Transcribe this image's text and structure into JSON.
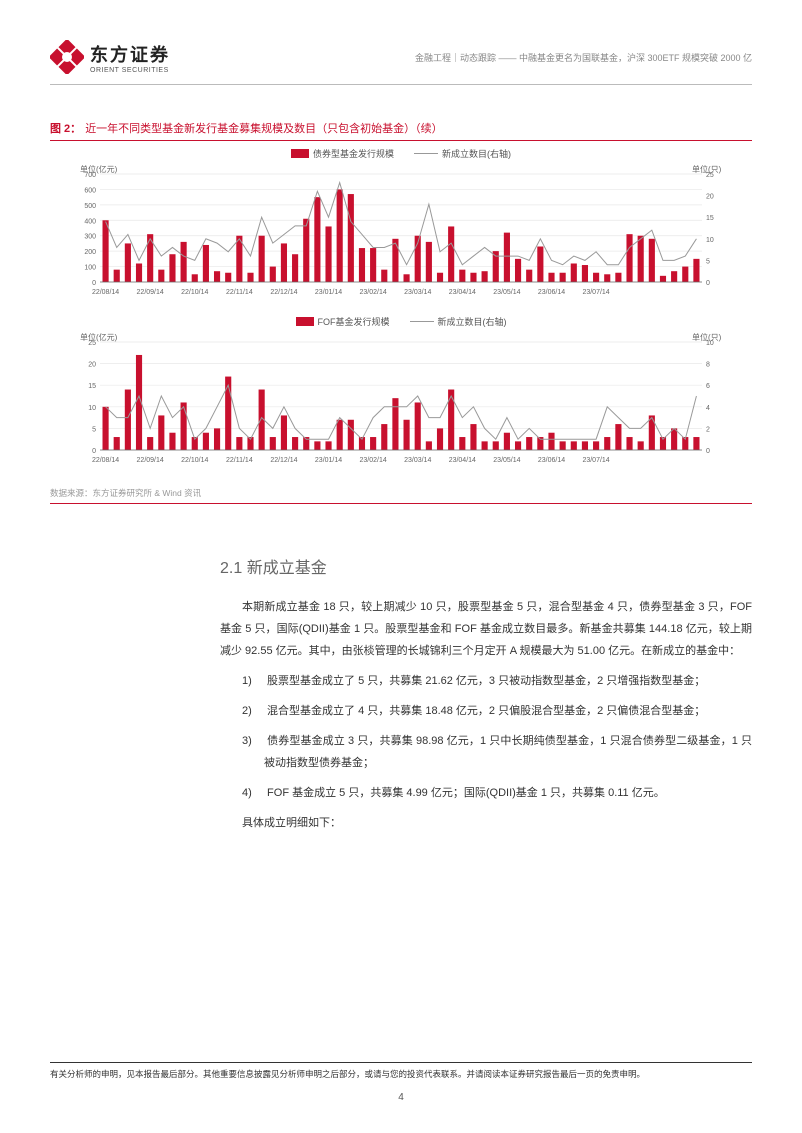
{
  "header": {
    "logo_cn": "东方证券",
    "logo_en": "ORIENT SECURITIES",
    "breadcrumb": "金融工程｜动态跟踪 —— 中融基金更名为国联基金，沪深 300ETF 规模突破 2000 亿",
    "logo_color": "#c8102e"
  },
  "figure": {
    "label": "图 2：",
    "title": "近一年不同类型基金新发行基金募集规模及数目（只包含初始基金）（续）",
    "source": "数据来源：东方证券研究所 & Wind 资讯",
    "caption_color": "#c8102e"
  },
  "chart1": {
    "type": "bar+line",
    "legend_bar": "债券型基金发行规模",
    "legend_line": "新成立数目(右轴)",
    "y_left_label": "单位(亿元)",
    "y_right_label": "单位(只)",
    "y_left_ticks": [
      0,
      100,
      200,
      300,
      400,
      500,
      600,
      700
    ],
    "y_right_ticks": [
      0,
      5,
      10,
      15,
      20,
      25
    ],
    "x_ticks": [
      "22/08/14",
      "22/09/14",
      "22/10/14",
      "22/11/14",
      "22/12/14",
      "23/01/14",
      "23/02/14",
      "23/03/14",
      "23/04/14",
      "23/05/14",
      "23/06/14",
      "23/07/14"
    ],
    "bar_color": "#c8102e",
    "line_color": "#999999",
    "grid_color": "#e8e8e8",
    "background_color": "#ffffff",
    "y_left_max": 700,
    "y_right_max": 25,
    "bars": [
      400,
      80,
      250,
      120,
      310,
      80,
      180,
      260,
      50,
      240,
      70,
      60,
      300,
      60,
      300,
      100,
      250,
      180,
      410,
      550,
      360,
      600,
      570,
      220,
      220,
      80,
      280,
      50,
      300,
      260,
      60,
      360,
      80,
      60,
      70,
      200,
      320,
      150,
      80,
      230,
      60,
      60,
      120,
      110,
      60,
      50,
      60,
      310,
      300,
      280,
      40,
      70,
      100,
      150
    ],
    "line": [
      14,
      8,
      11,
      5,
      10,
      6,
      8,
      6,
      5,
      10,
      9,
      7,
      10,
      6,
      15,
      9,
      11,
      13,
      13,
      21,
      15,
      23,
      14,
      11,
      8,
      8,
      9,
      4,
      9,
      18,
      7,
      9,
      4,
      6,
      8,
      6,
      6,
      6,
      5,
      10,
      5,
      4,
      6,
      5,
      7,
      4,
      4,
      8,
      10,
      12,
      5,
      5,
      6,
      10
    ]
  },
  "chart2": {
    "type": "bar+line",
    "legend_bar": "FOF基金发行规模",
    "legend_line": "新成立数目(右轴)",
    "y_left_label": "单位(亿元)",
    "y_right_label": "单位(只)",
    "y_left_ticks": [
      0,
      5,
      10,
      15,
      20,
      25
    ],
    "y_right_ticks": [
      0,
      2,
      4,
      6,
      8,
      10
    ],
    "x_ticks": [
      "22/08/14",
      "22/09/14",
      "22/10/14",
      "22/11/14",
      "22/12/14",
      "23/01/14",
      "23/02/14",
      "23/03/14",
      "23/04/14",
      "23/05/14",
      "23/06/14",
      "23/07/14"
    ],
    "bar_color": "#c8102e",
    "line_color": "#999999",
    "grid_color": "#e8e8e8",
    "background_color": "#ffffff",
    "y_left_max": 25,
    "y_right_max": 10,
    "bars": [
      10,
      3,
      14,
      22,
      3,
      8,
      4,
      11,
      3,
      4,
      5,
      17,
      3,
      3,
      14,
      3,
      8,
      3,
      3,
      2,
      2,
      7,
      7,
      3,
      3,
      6,
      12,
      7,
      11,
      2,
      5,
      14,
      3,
      6,
      2,
      2,
      4,
      2,
      3,
      3,
      4,
      2,
      2,
      2,
      2,
      3,
      6,
      3,
      2,
      8,
      3,
      5,
      3,
      3
    ],
    "line": [
      4,
      3,
      3,
      5,
      2,
      5,
      3,
      4,
      1,
      2,
      4,
      6,
      2,
      1,
      3,
      2,
      4,
      2,
      1,
      1,
      1,
      3,
      2,
      1,
      3,
      4,
      4,
      4,
      5,
      3,
      3,
      5,
      3,
      4,
      2,
      1,
      3,
      1,
      2,
      1,
      1,
      1,
      1,
      1,
      1,
      4,
      3,
      2,
      2,
      3,
      1,
      2,
      1,
      5
    ]
  },
  "section": {
    "number": "2.1",
    "title": "新成立基金",
    "para1": "本期新成立基金 18 只，较上期减少 10 只，股票型基金 5 只，混合型基金 4 只，债券型基金 3 只，FOF 基金 5 只，国际(QDII)基金 1 只。股票型基金和 FOF 基金成立数目最多。新基金共募集 144.18 亿元，较上期减少 92.55 亿元。其中，由张棪管理的长城锦利三个月定开 A 规模最大为 51.00 亿元。在新成立的基金中：",
    "items": [
      "股票型基金成立了 5 只，共募集 21.62 亿元，3 只被动指数型基金，2 只增强指数型基金；",
      "混合型基金成立了 4 只，共募集 18.48 亿元，2 只偏股混合型基金，2 只偏债混合型基金；",
      "债券型基金成立 3 只，共募集 98.98 亿元，1 只中长期纯债型基金，1 只混合债券型二级基金，1 只被动指数型债券基金；",
      "FOF 基金成立 5 只，共募集 4.99 亿元；国际(QDII)基金 1 只，共募集 0.11 亿元。"
    ],
    "para2": "具体成立明细如下："
  },
  "footer": {
    "disclaimer": "有关分析师的申明，见本报告最后部分。其他重要信息披露见分析师申明之后部分，或请与您的投资代表联系。并请阅读本证券研究报告最后一页的免责申明。",
    "page": "4"
  }
}
